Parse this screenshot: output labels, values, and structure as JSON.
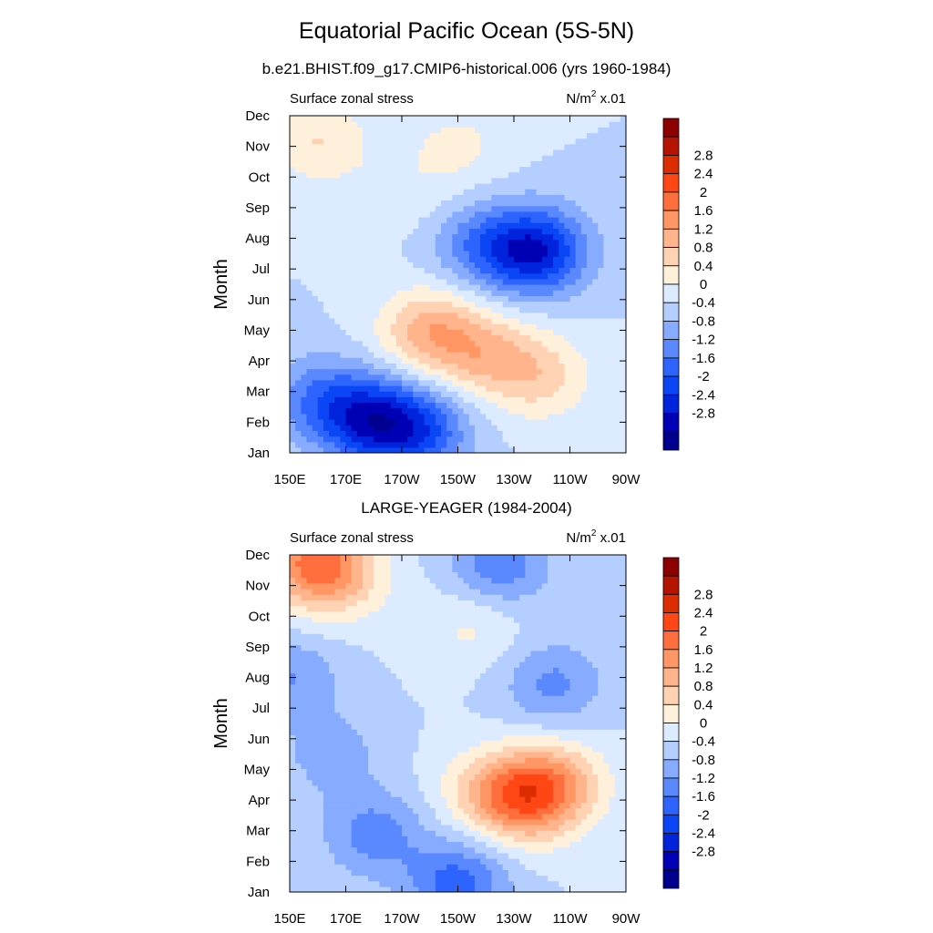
{
  "title": "Equatorial Pacific Ocean (5S-5N)",
  "subtitle": "b.e21.BHIST.f09_g17.CMIP6-historical.006 (yrs 1960-1984)",
  "colors": {
    "levels": [
      "#00008f",
      "#0000b4",
      "#0023dc",
      "#0a46f5",
      "#2d64ff",
      "#5a89ff",
      "#86abff",
      "#b4ceff",
      "#dcebff",
      "#fff0dc",
      "#ffd2b4",
      "#ffb48c",
      "#ff9664",
      "#ff6e3c",
      "#ff4614",
      "#dc2d00",
      "#b41400",
      "#8c0000"
    ]
  },
  "chart_data": [
    {
      "type": "contour",
      "title": "",
      "left_label": "Surface zonal stress",
      "units": {
        "base": "N/m",
        "exp": "2",
        "scale": "x.01"
      },
      "ylabel": "Month",
      "xticks": [
        "150E",
        "170E",
        "170W",
        "150W",
        "130W",
        "110W",
        "90W"
      ],
      "xlim_deg": [
        150,
        270
      ],
      "yticks": [
        "Jan",
        "Feb",
        "Mar",
        "Apr",
        "May",
        "Jun",
        "Jul",
        "Aug",
        "Sep",
        "Oct",
        "Nov",
        "Dec"
      ],
      "colorbar_labels": [
        "2.8",
        "2.4",
        "2",
        "1.6",
        "1.2",
        "0.8",
        "0.4",
        "0",
        "-0.4",
        "-0.8",
        "-1.2",
        "-1.6",
        "-2",
        "-2.4",
        "-2.8"
      ],
      "features": [
        {
          "lon": 178,
          "month": 1.1,
          "value": -2.0
        },
        {
          "lon": 196,
          "month": 0.7,
          "value": -1.6
        },
        {
          "lon": 160,
          "month": 1.8,
          "value": -1.0
        },
        {
          "lon": 238,
          "month": 6.6,
          "value": -2.3
        },
        {
          "lon": 218,
          "month": 6.8,
          "value": -1.0
        },
        {
          "lon": 200,
          "month": 4.0,
          "value": 1.4
        },
        {
          "lon": 220,
          "month": 3.2,
          "value": 1.1
        },
        {
          "lon": 240,
          "month": 2.5,
          "value": 0.9
        },
        {
          "lon": 160,
          "month": 10.2,
          "value": 0.8
        },
        {
          "lon": 210,
          "month": 10.0,
          "value": 0.5
        },
        {
          "lon": 190,
          "month": 8.5,
          "value": 0.3
        }
      ]
    },
    {
      "type": "contour",
      "title": "LARGE-YEAGER (1984-2004)",
      "left_label": "Surface zonal stress",
      "units": {
        "base": "N/m",
        "exp": "2",
        "scale": "x.01"
      },
      "ylabel": "Month",
      "xticks": [
        "150E",
        "170E",
        "170W",
        "150W",
        "130W",
        "110W",
        "90W"
      ],
      "xlim_deg": [
        150,
        270
      ],
      "yticks": [
        "Jan",
        "Feb",
        "Mar",
        "Apr",
        "May",
        "Jun",
        "Jul",
        "Aug",
        "Sep",
        "Oct",
        "Nov",
        "Dec"
      ],
      "colorbar_labels": [
        "2.8",
        "2.4",
        "2",
        "1.6",
        "1.2",
        "0.8",
        "0.4",
        "0",
        "-0.4",
        "-0.8",
        "-1.2",
        "-1.6",
        "-2",
        "-2.4",
        "-2.8"
      ],
      "features": [
        {
          "lon": 158,
          "month": 10.8,
          "value": 1.8
        },
        {
          "lon": 168,
          "month": 10.2,
          "value": 0.8
        },
        {
          "lon": 215,
          "month": 8.7,
          "value": 0.5
        },
        {
          "lon": 222,
          "month": 3.3,
          "value": 1.0
        },
        {
          "lon": 235,
          "month": 3.0,
          "value": 1.5
        },
        {
          "lon": 245,
          "month": 3.6,
          "value": 1.2
        },
        {
          "lon": 225,
          "month": 10.7,
          "value": -1.1
        },
        {
          "lon": 244,
          "month": 6.8,
          "value": -0.9
        },
        {
          "lon": 180,
          "month": 1.9,
          "value": -1.0
        },
        {
          "lon": 210,
          "month": 0.3,
          "value": -1.4
        },
        {
          "lon": 150,
          "month": 7.0,
          "value": -0.8
        },
        {
          "lon": 165,
          "month": 4.5,
          "value": -0.6
        }
      ]
    }
  ]
}
